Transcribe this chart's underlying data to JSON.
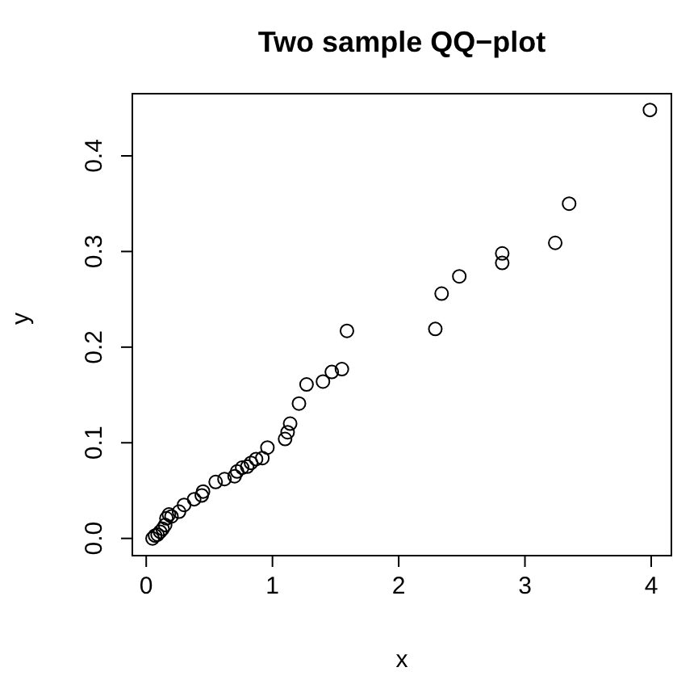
{
  "chart_data": {
    "type": "scatter",
    "title": "Two sample QQ−plot",
    "xlabel": "x",
    "ylabel": "y",
    "x": [
      0.05,
      0.07,
      0.09,
      0.11,
      0.13,
      0.15,
      0.16,
      0.18,
      0.2,
      0.26,
      0.3,
      0.38,
      0.44,
      0.45,
      0.55,
      0.62,
      0.7,
      0.72,
      0.76,
      0.8,
      0.83,
      0.87,
      0.92,
      0.96,
      1.1,
      1.12,
      1.14,
      1.21,
      1.27,
      1.4,
      1.47,
      1.55,
      1.59,
      2.29,
      2.34,
      2.48,
      2.82,
      2.82,
      3.24,
      3.35,
      3.99
    ],
    "series": [
      {
        "color": "#000000",
        "values": [
          0.0,
          0.003,
          0.004,
          0.007,
          0.01,
          0.014,
          0.021,
          0.025,
          0.023,
          0.028,
          0.035,
          0.041,
          0.045,
          0.049,
          0.059,
          0.062,
          0.065,
          0.07,
          0.074,
          0.075,
          0.079,
          0.083,
          0.084,
          0.095,
          0.104,
          0.111,
          0.12,
          0.141,
          0.161,
          0.164,
          0.174,
          0.177,
          0.217,
          0.219,
          0.256,
          0.274,
          0.288,
          0.298,
          0.309,
          0.35,
          0.448
        ]
      }
    ],
    "xlim": [
      -0.11,
      4.16
    ],
    "ylim": [
      -0.018,
      0.465
    ],
    "xticks": [
      0,
      1,
      2,
      3,
      4
    ],
    "yticks": [
      {
        "value": 0,
        "label": "0.0"
      },
      0.1,
      0.2,
      0.3,
      0.4
    ],
    "grid": false,
    "legend": false,
    "marker": "circle"
  }
}
